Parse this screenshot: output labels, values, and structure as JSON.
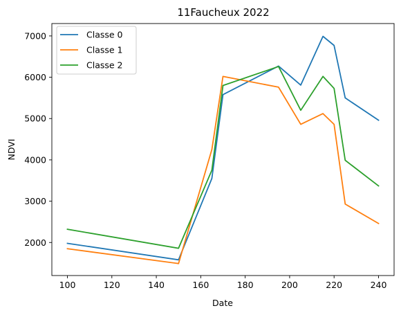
{
  "chart_data": {
    "type": "line",
    "title": "11Faucheux 2022",
    "xlabel": "Date",
    "ylabel": "NDVI",
    "xlim": [
      93,
      247
    ],
    "ylim": [
      1200,
      7300
    ],
    "xticks": [
      100,
      120,
      140,
      160,
      180,
      200,
      220,
      240
    ],
    "yticks": [
      2000,
      3000,
      4000,
      5000,
      6000,
      7000
    ],
    "grid": false,
    "legend_position": "top-left",
    "series": [
      {
        "name": "Classe 0",
        "color": "#1f77b4",
        "x": [
          100,
          150,
          165,
          170,
          195,
          205,
          215,
          220,
          225,
          240
        ],
        "y": [
          1980,
          1580,
          3550,
          5580,
          6270,
          5810,
          6990,
          6770,
          5500,
          4960
        ]
      },
      {
        "name": "Classe 1",
        "color": "#ff7f0e",
        "x": [
          100,
          150,
          165,
          170,
          195,
          205,
          215,
          220,
          225,
          240
        ],
        "y": [
          1850,
          1490,
          4250,
          6020,
          5760,
          4860,
          5120,
          4860,
          2930,
          2460
        ]
      },
      {
        "name": "Classe 2",
        "color": "#2ca02c",
        "x": [
          100,
          150,
          165,
          170,
          195,
          205,
          215,
          220,
          225,
          240
        ],
        "y": [
          2320,
          1860,
          3750,
          5800,
          6260,
          5200,
          6020,
          5730,
          3990,
          3370
        ]
      }
    ]
  }
}
